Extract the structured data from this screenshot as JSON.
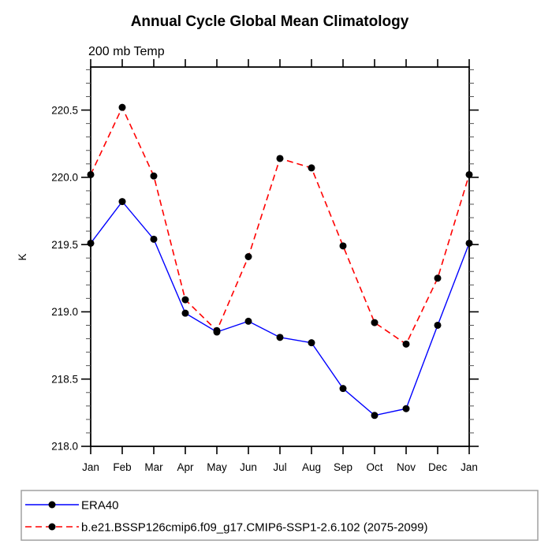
{
  "chart_data": {
    "type": "line",
    "title": "Annual Cycle Global Mean Climatology",
    "subtitle": "200 mb Temp",
    "xlabel": "",
    "ylabel": "K",
    "categories": [
      "Jan",
      "Feb",
      "Mar",
      "Apr",
      "May",
      "Jun",
      "Jul",
      "Aug",
      "Sep",
      "Oct",
      "Nov",
      "Dec",
      "Jan"
    ],
    "ylim": [
      218.0,
      220.82
    ],
    "yticks_major": [
      218.0,
      218.5,
      219.0,
      219.5,
      220.0,
      220.5
    ],
    "ytick_minor_step": 0.1,
    "grid": false,
    "legend_position": "bottom-left-outside",
    "axis_color": "#000000",
    "minor_tick_color": "#555555",
    "legend_border_color": "#a0a0a0",
    "marker_radius": 4.5,
    "series": [
      {
        "name": "ERA40",
        "color": "#0000ff",
        "style": "solid",
        "marker": "circle",
        "marker_color": "#000000",
        "values": [
          219.51,
          219.82,
          219.54,
          218.99,
          218.85,
          218.93,
          218.81,
          218.77,
          218.43,
          218.23,
          218.28,
          218.9,
          219.51
        ]
      },
      {
        "name": "b.e21.BSSP126cmip6.f09_g17.CMIP6-SSP1-2.6.102 (2075-2099)",
        "color": "#ff0000",
        "style": "dashed",
        "marker": "circle",
        "marker_color": "#000000",
        "values": [
          220.02,
          220.52,
          220.01,
          219.09,
          218.86,
          219.41,
          220.14,
          220.07,
          219.49,
          218.92,
          218.76,
          219.25,
          220.02
        ]
      }
    ]
  }
}
